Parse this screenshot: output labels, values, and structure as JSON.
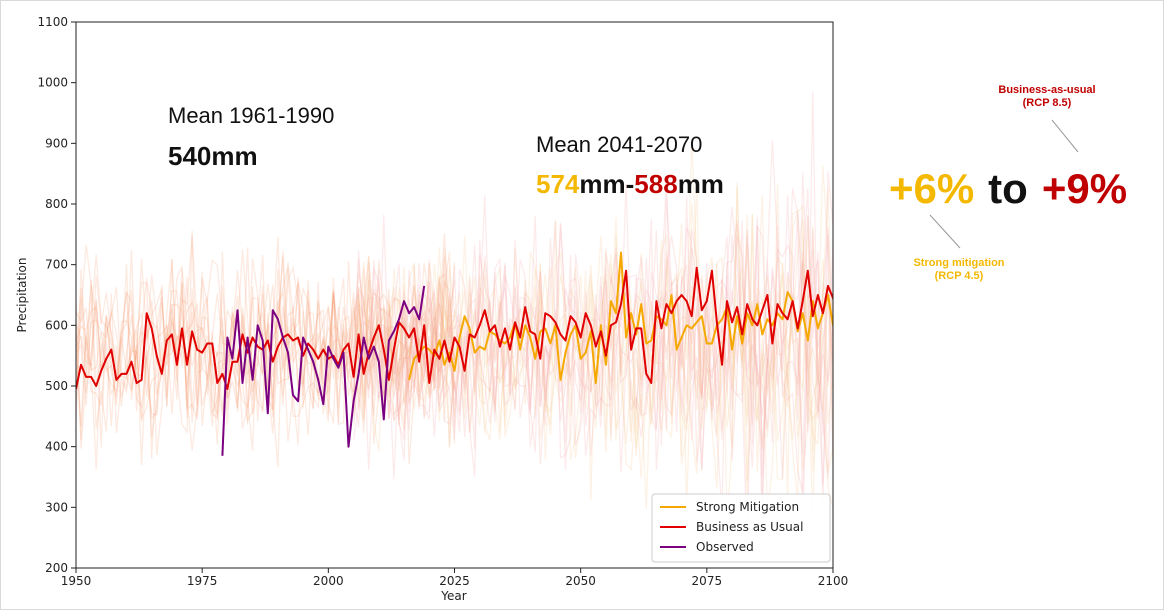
{
  "chart_data": {
    "type": "line",
    "xlabel": "Year",
    "ylabel": "Precipitation",
    "xlim": [
      1950,
      2100
    ],
    "ylim": [
      200,
      1100
    ],
    "xticks": [
      "1950",
      "1975",
      "2000",
      "2025",
      "2050",
      "2075",
      "2100"
    ],
    "yticks": [
      "200",
      "300",
      "400",
      "500",
      "600",
      "700",
      "800",
      "900",
      "1000",
      "1100"
    ],
    "legend_position": "bottom-right",
    "legend": [
      "Strong Mitigation",
      "Business as Usual",
      "Observed"
    ],
    "colors": {
      "strong_mitigation": "#f5a800",
      "business_as_usual": "#e00000",
      "observed": "#7a0080",
      "ensemble_historical": "#f4895a",
      "ensemble_rcp45": "#f7c38a",
      "ensemble_rcp85": "#f5a3a8"
    },
    "series": [
      {
        "name": "Business as Usual",
        "color": "#e00000",
        "x_start": 1950,
        "values": [
          495,
          535,
          515,
          515,
          500,
          525,
          545,
          560,
          510,
          520,
          520,
          540,
          505,
          510,
          620,
          595,
          550,
          520,
          575,
          585,
          535,
          595,
          535,
          590,
          560,
          555,
          570,
          570,
          505,
          520,
          495,
          540,
          540,
          585,
          555,
          580,
          565,
          560,
          575,
          540,
          565,
          580,
          585,
          575,
          580,
          550,
          570,
          560,
          545,
          560,
          545,
          550,
          535,
          560,
          570,
          515,
          585,
          520,
          555,
          580,
          600,
          560,
          510,
          560,
          605,
          595,
          580,
          595,
          540,
          600,
          505,
          560,
          545,
          575,
          540,
          580,
          565,
          525,
          585,
          580,
          600,
          625,
          590,
          600,
          565,
          595,
          560,
          605,
          580,
          630,
          590,
          585,
          545,
          620,
          615,
          605,
          585,
          575,
          615,
          605,
          580,
          620,
          600,
          565,
          590,
          550,
          600,
          605,
          635,
          690,
          560,
          595,
          595,
          520,
          505,
          640,
          595,
          635,
          620,
          640,
          650,
          640,
          615,
          695,
          625,
          640,
          690,
          605,
          535,
          640,
          605,
          630,
          585,
          635,
          610,
          600,
          625,
          650,
          570,
          635,
          620,
          610,
          640,
          595,
          640,
          690,
          615,
          650,
          620,
          665,
          645,
          610,
          720,
          600,
          680,
          700,
          640,
          615,
          625,
          600
        ]
      },
      {
        "name": "Strong Mitigation",
        "color": "#f5a800",
        "x_start": 2016,
        "values": [
          510,
          545,
          555,
          565,
          560,
          550,
          575,
          535,
          555,
          525,
          580,
          615,
          595,
          555,
          565,
          560,
          590,
          585,
          575,
          570,
          580,
          605,
          560,
          600,
          580,
          545,
          590,
          595,
          570,
          600,
          510,
          555,
          585,
          600,
          545,
          555,
          590,
          505,
          600,
          535,
          640,
          620,
          720,
          580,
          620,
          585,
          635,
          570,
          575,
          615,
          610,
          600,
          650,
          560,
          580,
          600,
          595,
          605,
          615,
          570,
          570,
          600,
          610,
          630,
          560,
          615,
          570,
          620,
          600,
          635,
          585,
          610,
          600,
          620,
          610,
          655,
          640,
          590,
          620,
          575,
          640,
          595,
          620,
          650,
          600,
          620,
          545,
          615,
          620,
          605,
          600,
          560,
          575,
          625,
          660
        ]
      },
      {
        "name": "Observed",
        "color": "#7a0080",
        "x_start": 1979,
        "values": [
          385,
          580,
          545,
          625,
          505,
          580,
          510,
          600,
          575,
          455,
          625,
          610,
          580,
          555,
          485,
          475,
          580,
          560,
          540,
          510,
          470,
          565,
          545,
          530,
          555,
          400,
          475,
          520,
          580,
          545,
          565,
          540,
          445,
          575,
          590,
          610,
          640,
          620,
          630,
          610,
          665
        ]
      }
    ],
    "annotations": {
      "mean_hist_title": "Mean 1961-1990",
      "mean_hist_value": "540mm",
      "mean_future_title": "Mean 2041-2070",
      "mean_future_low": "574",
      "mean_future_mid": "mm-",
      "mean_future_high": "588",
      "mean_future_unit": "mm",
      "range_low": "+6%",
      "range_mid": "to",
      "range_high": "+9%",
      "bau_note_line1": "Business-as-usual",
      "bau_note_line2": "(RCP 8.5)",
      "mit_note_line1": "Strong mitigation",
      "mit_note_line2": "(RCP 4.5)"
    }
  }
}
